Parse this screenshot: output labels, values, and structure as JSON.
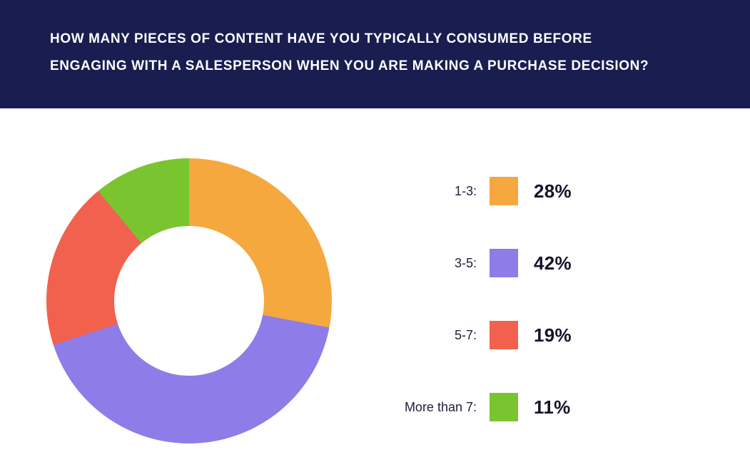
{
  "header": {
    "lines": [
      "HOW MANY PIECES OF CONTENT HAVE YOU TYPICALLY CONSUMED BEFORE",
      "ENGAGING WITH A SALESPERSON WHEN YOU ARE MAKING A PURCHASE DECISION?"
    ],
    "background": "#191d4f",
    "text_color": "#ffffff"
  },
  "chart_data": {
    "type": "pie",
    "donut": true,
    "title": "HOW MANY PIECES OF CONTENT HAVE YOU TYPICALLY CONSUMED BEFORE ENGAGING WITH A SALESPERSON WHEN YOU ARE MAKING A PURCHASE DECISION?",
    "categories": [
      "1-3",
      "3-5",
      "5-7",
      "More than 7"
    ],
    "values": [
      28,
      42,
      19,
      11
    ],
    "colors": [
      "#f5a83e",
      "#8e7ce8",
      "#f1614d",
      "#7ac52f"
    ],
    "start_angle_deg": 0,
    "direction": "clockwise",
    "legend_position": "right",
    "legend": [
      {
        "label": "1-3:",
        "value": "28%"
      },
      {
        "label": "3-5:",
        "value": "42%"
      },
      {
        "label": "5-7:",
        "value": "19%"
      },
      {
        "label": "More than 7:",
        "value": "11%"
      }
    ]
  }
}
